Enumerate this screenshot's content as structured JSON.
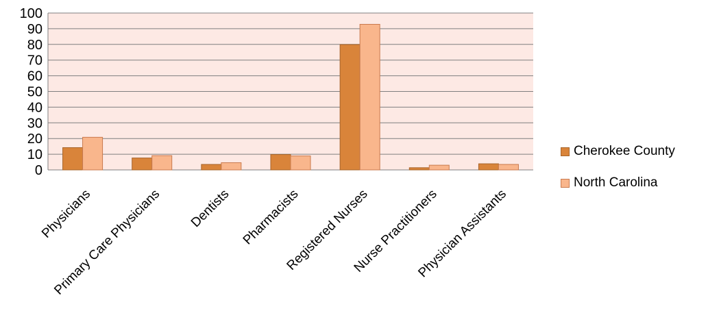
{
  "chart_data": {
    "type": "bar",
    "title": "",
    "xlabel": "",
    "ylabel": "",
    "ylim": [
      0,
      100
    ],
    "yticks": [
      0,
      10,
      20,
      30,
      40,
      50,
      60,
      70,
      80,
      90,
      100
    ],
    "grid": true,
    "legend_position": "right",
    "categories": [
      "Physicians",
      "Primary Care Physicians",
      "Dentists",
      "Pharmacists",
      "Registered Nurses",
      "Nurse Practitioners",
      "Physician Assistants"
    ],
    "series": [
      {
        "name": "Cherokee County",
        "color": "#d9843a",
        "edge": "#a6642a",
        "values": [
          14.2,
          7.6,
          3.5,
          9.8,
          79.9,
          1.4,
          3.9
        ]
      },
      {
        "name": "North Carolina",
        "color": "#f9b68c",
        "edge": "#c97a4e",
        "values": [
          20.8,
          9.1,
          4.6,
          8.9,
          92.8,
          3.0,
          3.5
        ]
      }
    ],
    "plot_background": "#fde9e4",
    "gridline_color": "#7f7f7f"
  }
}
